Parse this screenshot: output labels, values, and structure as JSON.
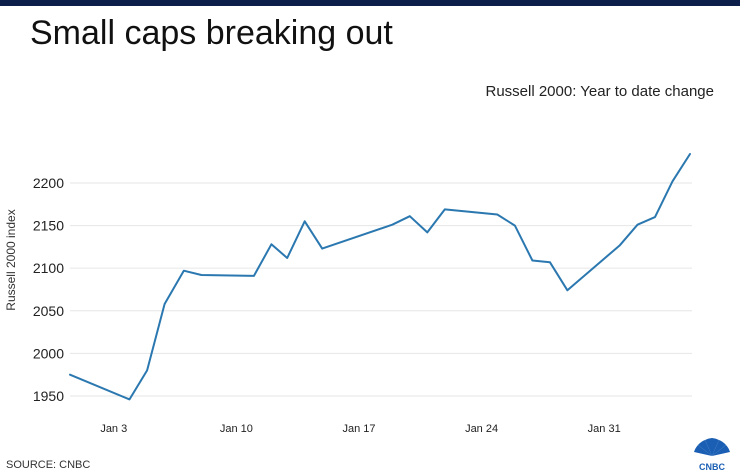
{
  "header": {
    "title": "Small caps breaking out",
    "subtitle": "Russell 2000: Year to date change"
  },
  "footer": {
    "source": "SOURCE: CNBC",
    "logo_text": "CNBC"
  },
  "colors": {
    "line": "#2b78b0",
    "grid": "#e6e6e6",
    "top_bar": "#0b1f4a"
  },
  "chart_data": {
    "type": "line",
    "title": "Small caps breaking out",
    "subtitle": "Russell 2000: Year to date change",
    "xlabel": "",
    "ylabel": "Russell 2000 index",
    "ylim": [
      1940,
      2240
    ],
    "yticks": [
      1950,
      2000,
      2050,
      2100,
      2150,
      2200
    ],
    "x_tick_labels": [
      {
        "label": "Jan 3",
        "day": 3
      },
      {
        "label": "Jan 10",
        "day": 10
      },
      {
        "label": "Jan 17",
        "day": 17
      },
      {
        "label": "Jan 24",
        "day": 24
      },
      {
        "label": "Jan 31",
        "day": 31
      }
    ],
    "grid": true,
    "series": [
      {
        "name": "Russell 2000",
        "points": [
          {
            "day": 0.5,
            "value": 1975
          },
          {
            "day": 3.9,
            "value": 1946
          },
          {
            "day": 4.9,
            "value": 1980
          },
          {
            "day": 5.9,
            "value": 2058
          },
          {
            "day": 7.0,
            "value": 2097
          },
          {
            "day": 8.0,
            "value": 2092
          },
          {
            "day": 11.0,
            "value": 2091
          },
          {
            "day": 12.0,
            "value": 2128
          },
          {
            "day": 12.9,
            "value": 2112
          },
          {
            "day": 13.9,
            "value": 2155
          },
          {
            "day": 14.9,
            "value": 2123
          },
          {
            "day": 18.9,
            "value": 2151
          },
          {
            "day": 19.9,
            "value": 2161
          },
          {
            "day": 20.9,
            "value": 2142
          },
          {
            "day": 21.9,
            "value": 2169
          },
          {
            "day": 24.9,
            "value": 2163
          },
          {
            "day": 25.9,
            "value": 2150
          },
          {
            "day": 26.9,
            "value": 2109
          },
          {
            "day": 27.9,
            "value": 2107
          },
          {
            "day": 28.9,
            "value": 2074
          },
          {
            "day": 31.9,
            "value": 2127
          },
          {
            "day": 32.9,
            "value": 2151
          },
          {
            "day": 33.9,
            "value": 2160
          },
          {
            "day": 34.9,
            "value": 2202
          },
          {
            "day": 35.9,
            "value": 2234
          }
        ]
      }
    ]
  }
}
